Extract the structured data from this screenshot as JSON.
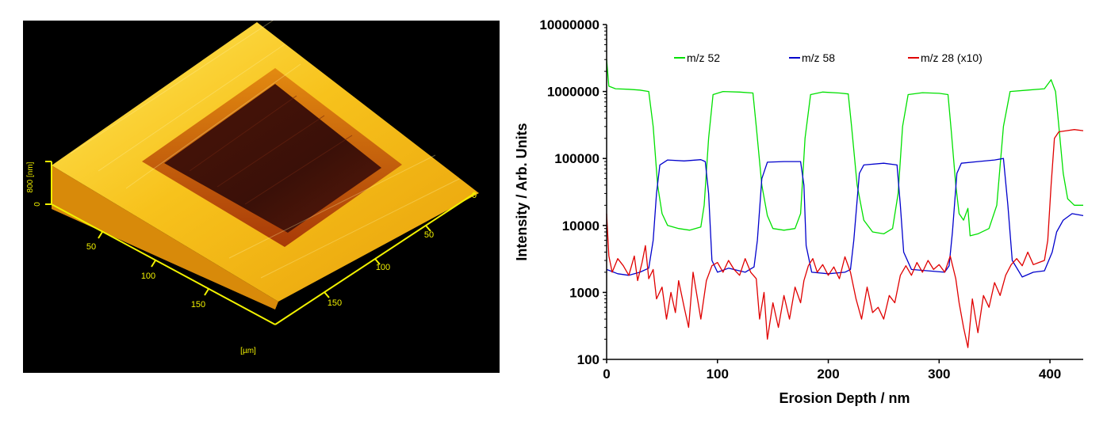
{
  "afm": {
    "z_axis": {
      "label": "800 [nm]",
      "ticks": [
        "0"
      ]
    },
    "x_axis": {
      "ticks": [
        "50",
        "100",
        "150"
      ]
    },
    "y_axis": {
      "ticks": [
        "0",
        "50",
        "100",
        "150"
      ]
    },
    "unit_label": "[µm]",
    "colors": {
      "background": "#000000",
      "axes": "#f2f200",
      "surface_high": "#ffe64a",
      "surface_mid": "#f0b010",
      "pit_edge": "#b04010",
      "pit_floor": "#3a120a"
    }
  },
  "chart_data": {
    "type": "line",
    "y_scale": "log",
    "xlabel": "Erosion Depth / nm",
    "ylabel": "Intensity / Arb. Units",
    "xlim": [
      0,
      430
    ],
    "ylim": [
      100,
      10000000
    ],
    "x_ticks": [
      "0",
      "100",
      "200",
      "300",
      "400"
    ],
    "y_ticks": [
      "100",
      "1000",
      "10000",
      "100000",
      "1000000",
      "10000000"
    ],
    "legend_position": "top",
    "series": [
      {
        "name": "m/z 52",
        "color": "#00e000",
        "points": [
          [
            0,
            3000000
          ],
          [
            2,
            1200000
          ],
          [
            8,
            1100000
          ],
          [
            20,
            1080000
          ],
          [
            30,
            1050000
          ],
          [
            38,
            1000000
          ],
          [
            42,
            300000
          ],
          [
            46,
            40000
          ],
          [
            50,
            15000
          ],
          [
            55,
            10000
          ],
          [
            65,
            9000
          ],
          [
            75,
            8500
          ],
          [
            85,
            9500
          ],
          [
            88,
            20000
          ],
          [
            92,
            200000
          ],
          [
            96,
            900000
          ],
          [
            105,
            1000000
          ],
          [
            120,
            980000
          ],
          [
            132,
            950000
          ],
          [
            135,
            300000
          ],
          [
            140,
            40000
          ],
          [
            145,
            14000
          ],
          [
            150,
            9000
          ],
          [
            160,
            8500
          ],
          [
            170,
            9000
          ],
          [
            175,
            15000
          ],
          [
            179,
            200000
          ],
          [
            184,
            900000
          ],
          [
            195,
            980000
          ],
          [
            210,
            950000
          ],
          [
            218,
            920000
          ],
          [
            221,
            300000
          ],
          [
            226,
            40000
          ],
          [
            232,
            12000
          ],
          [
            240,
            8000
          ],
          [
            250,
            7500
          ],
          [
            258,
            9000
          ],
          [
            263,
            30000
          ],
          [
            267,
            300000
          ],
          [
            272,
            900000
          ],
          [
            285,
            960000
          ],
          [
            300,
            940000
          ],
          [
            308,
            900000
          ],
          [
            311,
            250000
          ],
          [
            315,
            40000
          ],
          [
            318,
            15000
          ],
          [
            322,
            12000
          ],
          [
            326,
            18000
          ],
          [
            328,
            7000
          ],
          [
            335,
            7500
          ],
          [
            345,
            9000
          ],
          [
            352,
            20000
          ],
          [
            358,
            300000
          ],
          [
            364,
            1000000
          ],
          [
            380,
            1050000
          ],
          [
            395,
            1100000
          ],
          [
            401,
            1500000
          ],
          [
            405,
            1000000
          ],
          [
            408,
            300000
          ],
          [
            412,
            60000
          ],
          [
            416,
            25000
          ],
          [
            422,
            20000
          ],
          [
            430,
            20000
          ]
        ]
      },
      {
        "name": "m/z 58",
        "color": "#0000cc",
        "points": [
          [
            0,
            2200
          ],
          [
            10,
            1900
          ],
          [
            20,
            1800
          ],
          [
            30,
            2000
          ],
          [
            38,
            2300
          ],
          [
            42,
            6000
          ],
          [
            45,
            30000
          ],
          [
            48,
            80000
          ],
          [
            55,
            95000
          ],
          [
            70,
            92000
          ],
          [
            85,
            96000
          ],
          [
            89,
            90000
          ],
          [
            92,
            30000
          ],
          [
            95,
            3000
          ],
          [
            100,
            2000
          ],
          [
            110,
            2300
          ],
          [
            125,
            2000
          ],
          [
            133,
            2400
          ],
          [
            136,
            6000
          ],
          [
            140,
            50000
          ],
          [
            145,
            88000
          ],
          [
            160,
            90000
          ],
          [
            175,
            90000
          ],
          [
            178,
            40000
          ],
          [
            180,
            5000
          ],
          [
            185,
            2000
          ],
          [
            200,
            1900
          ],
          [
            215,
            2000
          ],
          [
            220,
            2200
          ],
          [
            223,
            6000
          ],
          [
            228,
            60000
          ],
          [
            232,
            80000
          ],
          [
            250,
            85000
          ],
          [
            262,
            80000
          ],
          [
            265,
            20000
          ],
          [
            268,
            4000
          ],
          [
            275,
            2200
          ],
          [
            290,
            2100
          ],
          [
            305,
            2000
          ],
          [
            309,
            2500
          ],
          [
            312,
            8000
          ],
          [
            316,
            60000
          ],
          [
            320,
            85000
          ],
          [
            335,
            90000
          ],
          [
            350,
            95000
          ],
          [
            358,
            100000
          ],
          [
            362,
            20000
          ],
          [
            366,
            3000
          ],
          [
            375,
            1700
          ],
          [
            385,
            2000
          ],
          [
            395,
            2100
          ],
          [
            402,
            4000
          ],
          [
            406,
            8000
          ],
          [
            412,
            12000
          ],
          [
            420,
            15000
          ],
          [
            430,
            14000
          ]
        ]
      },
      {
        "name": "m/z 28 (x10)",
        "color": "#e00000",
        "points": [
          [
            0,
            15000
          ],
          [
            2,
            3500
          ],
          [
            5,
            2000
          ],
          [
            10,
            3200
          ],
          [
            15,
            2500
          ],
          [
            20,
            1800
          ],
          [
            25,
            3500
          ],
          [
            28,
            1500
          ],
          [
            32,
            2800
          ],
          [
            35,
            5000
          ],
          [
            38,
            1600
          ],
          [
            42,
            2200
          ],
          [
            45,
            800
          ],
          [
            50,
            1200
          ],
          [
            54,
            400
          ],
          [
            58,
            1000
          ],
          [
            62,
            500
          ],
          [
            65,
            1500
          ],
          [
            70,
            600
          ],
          [
            74,
            300
          ],
          [
            78,
            2000
          ],
          [
            82,
            800
          ],
          [
            85,
            400
          ],
          [
            90,
            1500
          ],
          [
            95,
            2500
          ],
          [
            100,
            2800
          ],
          [
            105,
            2000
          ],
          [
            110,
            3000
          ],
          [
            115,
            2200
          ],
          [
            120,
            1800
          ],
          [
            125,
            3200
          ],
          [
            130,
            2000
          ],
          [
            135,
            1600
          ],
          [
            138,
            400
          ],
          [
            142,
            1000
          ],
          [
            145,
            200
          ],
          [
            150,
            700
          ],
          [
            155,
            300
          ],
          [
            160,
            900
          ],
          [
            165,
            400
          ],
          [
            170,
            1200
          ],
          [
            175,
            700
          ],
          [
            178,
            1500
          ],
          [
            182,
            2500
          ],
          [
            186,
            3200
          ],
          [
            190,
            2000
          ],
          [
            195,
            2600
          ],
          [
            200,
            1800
          ],
          [
            205,
            2400
          ],
          [
            210,
            1600
          ],
          [
            215,
            3400
          ],
          [
            220,
            2000
          ],
          [
            225,
            800
          ],
          [
            230,
            400
          ],
          [
            235,
            1200
          ],
          [
            240,
            500
          ],
          [
            245,
            600
          ],
          [
            250,
            400
          ],
          [
            255,
            900
          ],
          [
            260,
            700
          ],
          [
            265,
            1800
          ],
          [
            270,
            2500
          ],
          [
            275,
            1800
          ],
          [
            280,
            2800
          ],
          [
            285,
            2000
          ],
          [
            290,
            3000
          ],
          [
            295,
            2200
          ],
          [
            300,
            2600
          ],
          [
            305,
            2000
          ],
          [
            310,
            3500
          ],
          [
            315,
            1600
          ],
          [
            318,
            700
          ],
          [
            322,
            300
          ],
          [
            326,
            150
          ],
          [
            330,
            800
          ],
          [
            335,
            250
          ],
          [
            340,
            900
          ],
          [
            345,
            600
          ],
          [
            350,
            1400
          ],
          [
            355,
            900
          ],
          [
            360,
            1800
          ],
          [
            365,
            2600
          ],
          [
            370,
            3200
          ],
          [
            375,
            2500
          ],
          [
            380,
            4000
          ],
          [
            385,
            2600
          ],
          [
            390,
            2800
          ],
          [
            395,
            3000
          ],
          [
            398,
            6000
          ],
          [
            401,
            40000
          ],
          [
            404,
            200000
          ],
          [
            408,
            250000
          ],
          [
            415,
            260000
          ],
          [
            422,
            270000
          ],
          [
            430,
            260000
          ]
        ]
      }
    ]
  }
}
